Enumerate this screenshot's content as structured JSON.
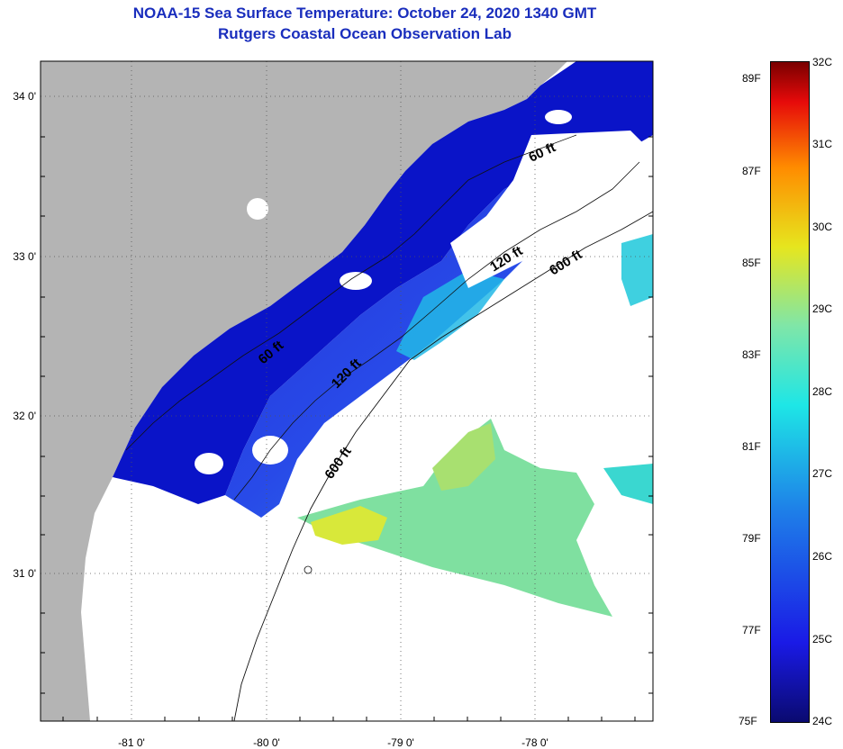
{
  "title": {
    "line1": "NOAA-15 Sea Surface Temperature:  October 24, 2020 1340 GMT",
    "line2": "Rutgers Coastal Ocean Observation Lab"
  },
  "axes": {
    "lat_labels": [
      "34 0'",
      "33 0'",
      "32 0'",
      "31 0'"
    ],
    "lon_labels": [
      "-81 0'",
      "-80 0'",
      "-79 0'",
      "-78 0'"
    ]
  },
  "contours": {
    "labels": [
      "60 ft",
      "120 ft",
      "600 ft",
      "60 ft",
      "120 ft",
      "600 ft"
    ]
  },
  "colorbar": {
    "fahrenheit": [
      "89F",
      "87F",
      "85F",
      "83F",
      "81F",
      "79F",
      "77F",
      "75F"
    ],
    "celsius": [
      "32C",
      "31C",
      "30C",
      "29C",
      "28C",
      "27C",
      "26C",
      "25C",
      "24C"
    ]
  },
  "colors": {
    "land": "#b4b4b4",
    "title": "#1a2ebd",
    "no_data": "#ffffff"
  }
}
